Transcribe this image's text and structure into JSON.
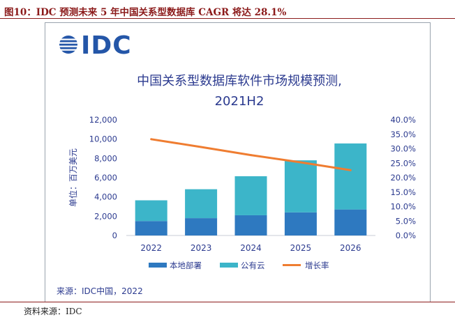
{
  "figure_title": "图10：IDC 预测未来 5 年中国关系型数据库 CAGR 将达 28.1%",
  "logo_text": "IDC",
  "source_inner": "来源：IDC中国，2022",
  "source_outer": "资料来源：IDC",
  "colors": {
    "on_premise": "#2e79c0",
    "public_cloud": "#3cb5c9",
    "growth": "#ef7d31",
    "title_text": "#2b3a8f",
    "axis_text": "#2b3a8f",
    "figure_title": "#8b1a1a"
  },
  "chart_data": {
    "type": "bar",
    "stacked": true,
    "title": "中国关系型数据库软件市场规模预测,",
    "subtitle": "2021H2",
    "categories": [
      "2022",
      "2023",
      "2024",
      "2025",
      "2026"
    ],
    "series": [
      {
        "name": "本地部署",
        "type": "bar",
        "axis": "left",
        "values": [
          1500,
          1800,
          2100,
          2400,
          2700
        ]
      },
      {
        "name": "公有云",
        "type": "bar",
        "axis": "left",
        "values": [
          2150,
          3000,
          4050,
          5400,
          6850
        ]
      },
      {
        "name": "增长率",
        "type": "line",
        "axis": "right",
        "values": [
          33.3,
          30.6,
          27.8,
          25.3,
          22.6
        ]
      }
    ],
    "ylabel": "单位：百万美元",
    "ylim": [
      0,
      12000
    ],
    "y_ticks": [
      "0",
      "2,000",
      "4,000",
      "6,000",
      "8,000",
      "10,000",
      "12,000"
    ],
    "y2lim": [
      0,
      40
    ],
    "y2_ticks": [
      "0.0%",
      "5.0%",
      "10.0%",
      "15.0%",
      "20.0%",
      "25.0%",
      "30.0%",
      "35.0%",
      "40.0%"
    ],
    "legend_position": "bottom",
    "grid": false
  }
}
